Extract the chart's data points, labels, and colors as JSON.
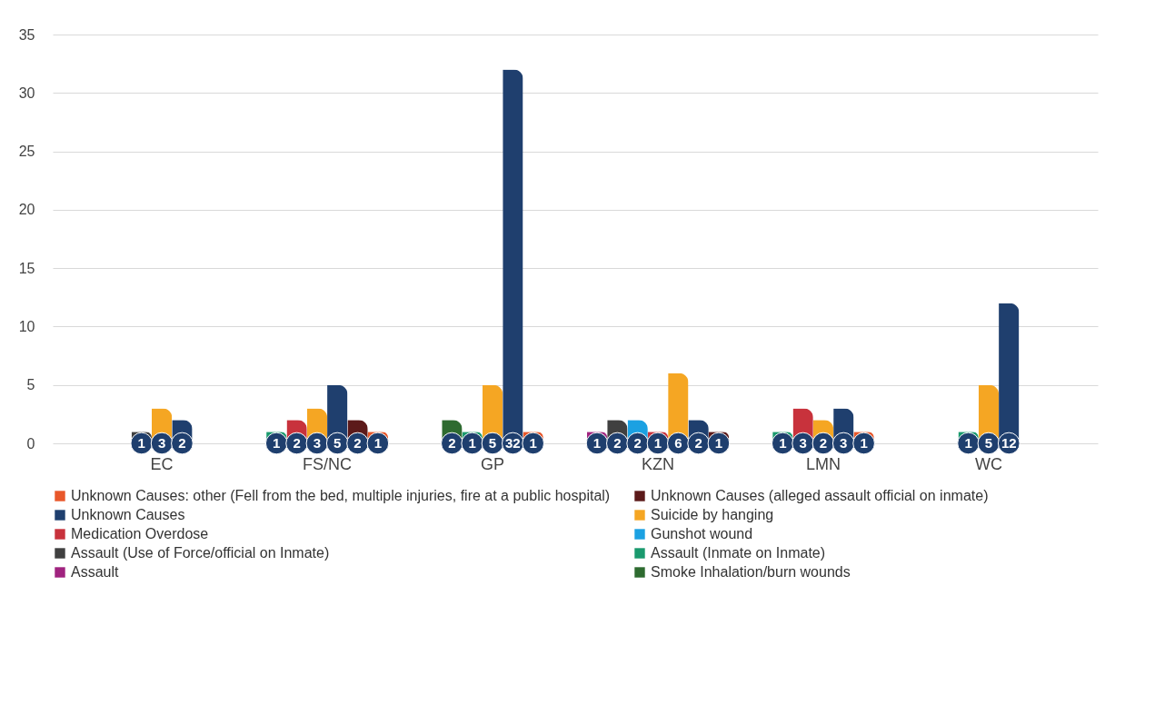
{
  "chart_data": {
    "type": "bar",
    "categories": [
      "EC",
      "FS/NC",
      "GP",
      "KZN",
      "LMN",
      "WC"
    ],
    "series": [
      {
        "name": "Unknown Causes: other (Fell from the bed, multiple injuries, fire at a public hospital)",
        "color": "#e8572a",
        "values": [
          null,
          1,
          1,
          null,
          1,
          null
        ]
      },
      {
        "name": "Unknown Causes (alleged assault official on inmate)",
        "color": "#5c1a1a",
        "values": [
          null,
          2,
          null,
          1,
          null,
          null
        ]
      },
      {
        "name": "Unknown Causes",
        "color": "#1f3f6e",
        "values": [
          2,
          5,
          32,
          2,
          3,
          12
        ]
      },
      {
        "name": "Suicide by hanging",
        "color": "#f5a623",
        "values": [
          3,
          3,
          5,
          6,
          2,
          5
        ]
      },
      {
        "name": "Medication Overdose",
        "color": "#c8323c",
        "values": [
          null,
          2,
          null,
          1,
          3,
          null
        ]
      },
      {
        "name": "Gunshot wound",
        "color": "#1ba1e2",
        "values": [
          null,
          null,
          null,
          2,
          null,
          null
        ]
      },
      {
        "name": "Assault (Use of Force/official on Inmate)",
        "color": "#404040",
        "values": [
          1,
          null,
          null,
          2,
          null,
          null
        ]
      },
      {
        "name": "Assault (Inmate on Inmate)",
        "color": "#1a9a6e",
        "values": [
          null,
          1,
          1,
          null,
          1,
          1
        ]
      },
      {
        "name": "Assault",
        "color": "#a0237f",
        "values": [
          null,
          null,
          null,
          1,
          null,
          null
        ]
      },
      {
        "name": "Smoke Inhalation/burn wounds",
        "color": "#2e6b30",
        "values": [
          null,
          null,
          2,
          null,
          null,
          null
        ]
      }
    ],
    "ylim": [
      0,
      35
    ],
    "yticks": [
      0,
      5,
      10,
      15,
      20,
      25,
      30,
      35
    ],
    "grid": "y",
    "legend": "bottom",
    "data_labels": true
  }
}
